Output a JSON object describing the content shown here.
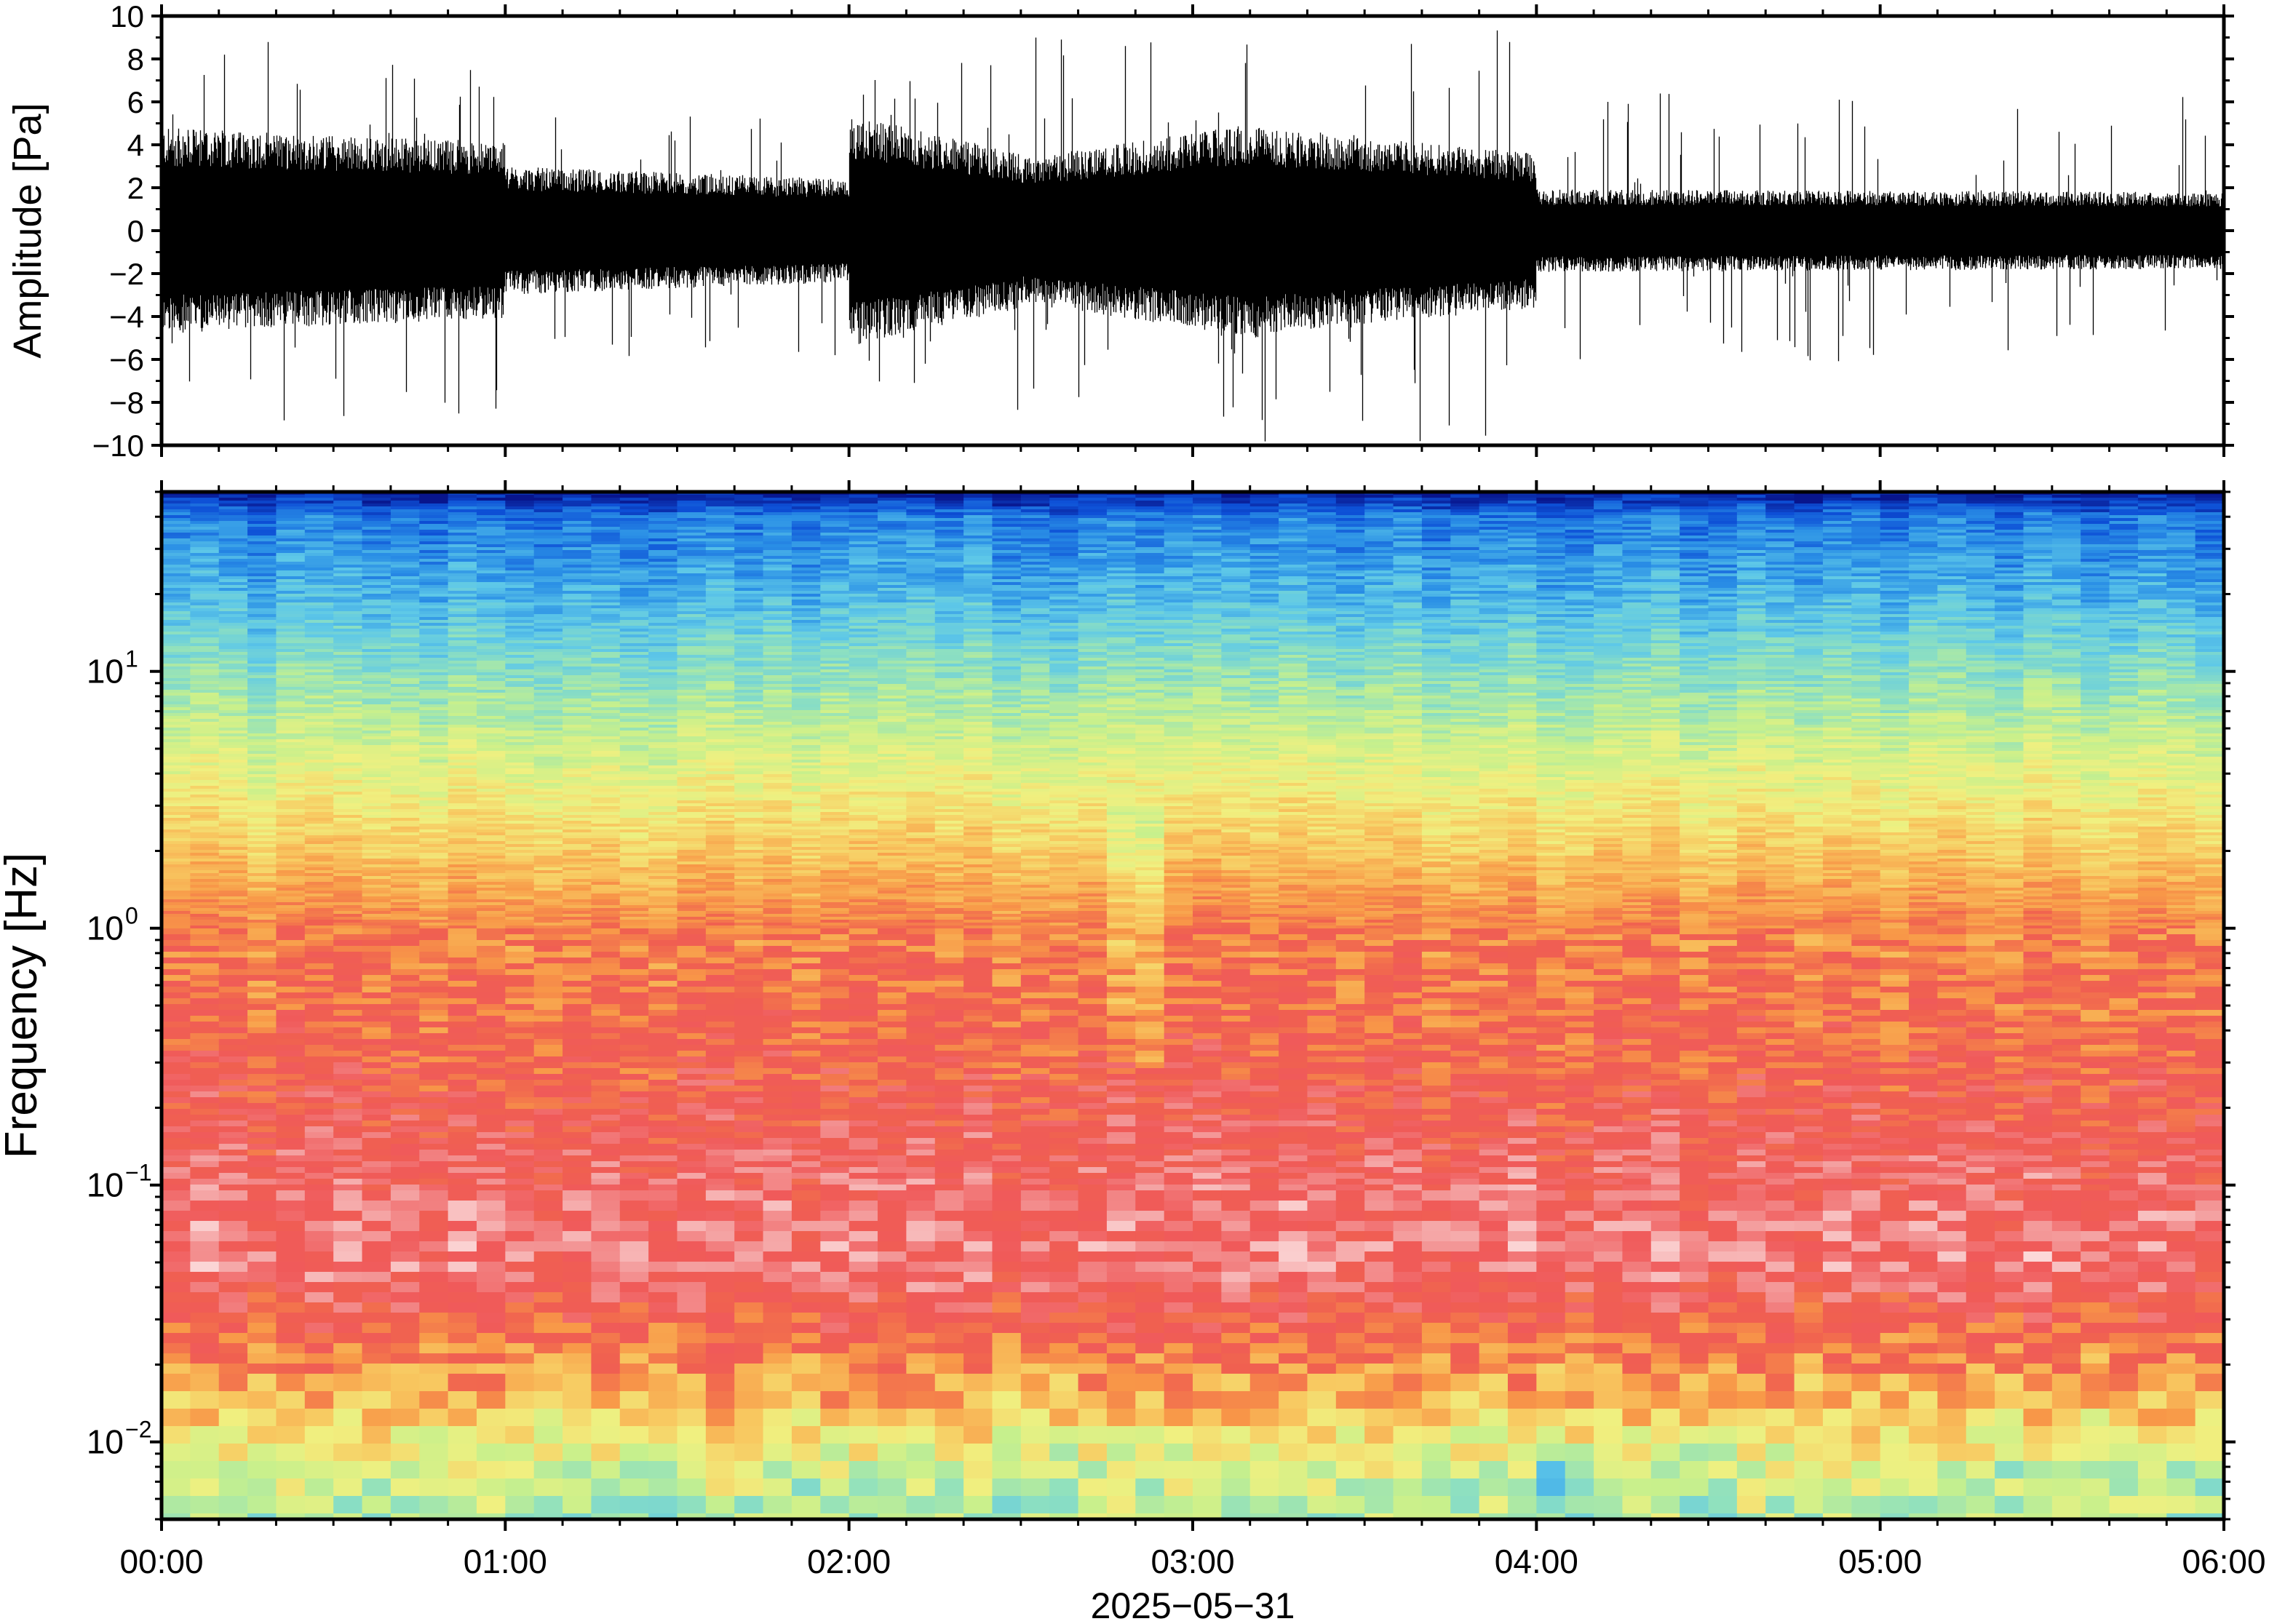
{
  "chart_data": [
    {
      "type": "line",
      "panel": "waveform",
      "ylabel": "Amplitude [Pa]",
      "ylim": [
        -10,
        10
      ],
      "yticks": [
        "10",
        "8",
        "6",
        "4",
        "2",
        "0",
        "−2",
        "−4",
        "−6",
        "−8",
        "−10"
      ],
      "ytick_values": [
        10,
        8,
        6,
        4,
        2,
        0,
        -2,
        -4,
        -6,
        -8,
        -10
      ],
      "xlim_hours": [
        0,
        6
      ],
      "envelope_segments": [
        {
          "from_h": 0.0,
          "to_h": 1.0,
          "typical_amp_start": 4.0,
          "typical_amp_end": 3.4,
          "peak_amp": 9.0
        },
        {
          "from_h": 1.0,
          "to_h": 2.0,
          "typical_amp_start": 2.5,
          "typical_amp_end": 2.0,
          "peak_amp": 6.0
        },
        {
          "from_h": 2.0,
          "to_h": 2.5,
          "typical_amp_start": 4.5,
          "typical_amp_end": 3.0,
          "peak_amp": 8.5
        },
        {
          "from_h": 2.5,
          "to_h": 3.2,
          "typical_amp_start": 2.8,
          "typical_amp_end": 4.2,
          "peak_amp": 9.0
        },
        {
          "from_h": 3.2,
          "to_h": 4.0,
          "typical_amp_start": 4.0,
          "typical_amp_end": 3.0,
          "peak_amp": 10.0
        },
        {
          "from_h": 4.0,
          "to_h": 6.0,
          "typical_amp_start": 1.6,
          "typical_amp_end": 1.5,
          "peak_amp": 6.5
        }
      ],
      "line_color": "#000000"
    },
    {
      "type": "heatmap",
      "panel": "spectrogram",
      "ylabel": "Frequency [Hz]",
      "yscale": "log",
      "ylim_hz": [
        0.005,
        50
      ],
      "yticks": [
        {
          "base": "10",
          "exp": "−2",
          "value": 0.01
        },
        {
          "base": "10",
          "exp": "−1",
          "value": 0.1
        },
        {
          "base": "10",
          "exp": "0",
          "value": 1
        },
        {
          "base": "10",
          "exp": "1",
          "value": 10
        }
      ],
      "xlabel": "2025−05−31",
      "xticks": [
        "00:00",
        "01:00",
        "02:00",
        "03:00",
        "04:00",
        "05:00",
        "06:00"
      ],
      "xtick_hours": [
        0,
        1,
        2,
        3,
        4,
        5,
        6
      ],
      "colormap": [
        "#08158c",
        "#0d4fd6",
        "#2a8fe6",
        "#5ec8e8",
        "#8ee0c0",
        "#c8f08c",
        "#f0f080",
        "#f8c860",
        "#f89848",
        "#f06050",
        "#f05a5a",
        "#f4a0a0",
        "#fff0f0"
      ],
      "mean_power_profile": [
        {
          "freq_hz": 50,
          "level": 0.0
        },
        {
          "freq_hz": 40,
          "level": 0.14
        },
        {
          "freq_hz": 20,
          "level": 0.22
        },
        {
          "freq_hz": 10,
          "level": 0.33
        },
        {
          "freq_hz": 5,
          "level": 0.44
        },
        {
          "freq_hz": 2,
          "level": 0.58
        },
        {
          "freq_hz": 1,
          "level": 0.7
        },
        {
          "freq_hz": 0.3,
          "level": 0.76
        },
        {
          "freq_hz": 0.1,
          "level": 0.84
        },
        {
          "freq_hz": 0.05,
          "level": 0.87
        },
        {
          "freq_hz": 0.03,
          "level": 0.77
        },
        {
          "freq_hz": 0.015,
          "level": 0.62
        },
        {
          "freq_hz": 0.008,
          "level": 0.44
        },
        {
          "freq_hz": 0.005,
          "level": 0.4
        }
      ],
      "features": [
        {
          "from_h": 2.75,
          "to_h": 2.95,
          "freq_low_hz": 0.3,
          "freq_high_hz": 3,
          "level_shift": -0.1
        },
        {
          "from_h": 4.0,
          "to_h": 4.2,
          "freq_low_hz": 0.005,
          "freq_high_hz": 0.008,
          "level_shift": -0.1
        }
      ]
    }
  ]
}
